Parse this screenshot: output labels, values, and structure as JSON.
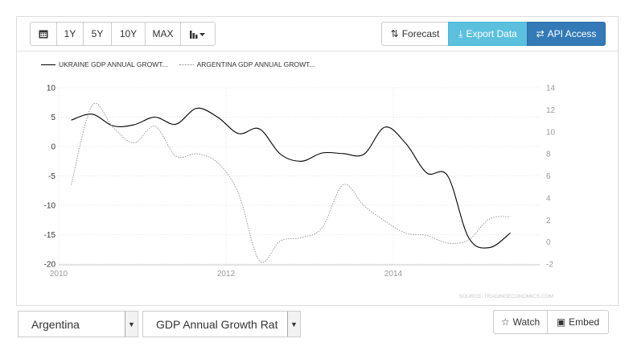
{
  "toolbar": {
    "ranges": [
      {
        "label": "1Y"
      },
      {
        "label": "5Y"
      },
      {
        "label": "10Y"
      },
      {
        "label": "MAX"
      }
    ],
    "forecast_label": "Forecast",
    "export_label": "Export Data",
    "api_label": "API Access",
    "calendar_icon": "calendar-icon",
    "chart_type_icon": "bar-chart-icon"
  },
  "legend": {
    "series1": "UKRAINE GDP ANNUAL GROWT...",
    "series2": "ARGENTINA GDP ANNUAL GROWT..."
  },
  "source_text": "SOURCE: TRADINGECONOMICS.COM",
  "colors": {
    "series1": "#000000",
    "series2": "#999999",
    "info_button": "#5bc0de",
    "primary_button": "#337ab7"
  },
  "chart_data": {
    "type": "line",
    "x_ticks": [
      "2010",
      "2012",
      "2014"
    ],
    "y_left": {
      "ticks": [
        "10",
        "5",
        "0",
        "-5",
        "-10",
        "-15",
        "-20"
      ],
      "range": [
        -20,
        10
      ]
    },
    "y_right": {
      "ticks": [
        "14",
        "12",
        "10",
        "8",
        "6",
        "4",
        "2",
        "0",
        "-2"
      ],
      "range": [
        -2,
        14
      ]
    },
    "grid": true,
    "legend_position": "top-left",
    "series": [
      {
        "name": "UKRAINE GDP ANNUAL GROWT...",
        "axis": "left",
        "style": "solid",
        "points": [
          [
            2010.15,
            4.5
          ],
          [
            2010.4,
            5.5
          ],
          [
            2010.65,
            3.5
          ],
          [
            2010.9,
            3.7
          ],
          [
            2011.15,
            5.0
          ],
          [
            2011.4,
            3.8
          ],
          [
            2011.65,
            6.5
          ],
          [
            2011.9,
            5.0
          ],
          [
            2012.15,
            2.2
          ],
          [
            2012.4,
            3.0
          ],
          [
            2012.65,
            -1.3
          ],
          [
            2012.9,
            -2.5
          ],
          [
            2013.15,
            -1.1
          ],
          [
            2013.4,
            -1.2
          ],
          [
            2013.65,
            -1.3
          ],
          [
            2013.9,
            3.3
          ],
          [
            2014.15,
            0.5
          ],
          [
            2014.4,
            -4.5
          ],
          [
            2014.65,
            -5.0
          ],
          [
            2014.9,
            -15.5
          ],
          [
            2015.15,
            -17.2
          ],
          [
            2015.4,
            -14.7
          ]
        ]
      },
      {
        "name": "ARGENTINA GDP ANNUAL GROWT...",
        "axis": "right",
        "style": "dotted",
        "points": [
          [
            2010.15,
            5.2
          ],
          [
            2010.4,
            12.4
          ],
          [
            2010.65,
            10.4
          ],
          [
            2010.9,
            9.0
          ],
          [
            2011.15,
            10.5
          ],
          [
            2011.4,
            7.8
          ],
          [
            2011.65,
            8.0
          ],
          [
            2011.9,
            7.2
          ],
          [
            2012.15,
            4.4
          ],
          [
            2012.4,
            -1.7
          ],
          [
            2012.65,
            0.1
          ],
          [
            2012.9,
            0.4
          ],
          [
            2013.15,
            1.3
          ],
          [
            2013.4,
            5.2
          ],
          [
            2013.65,
            3.3
          ],
          [
            2013.9,
            1.9
          ],
          [
            2014.15,
            0.8
          ],
          [
            2014.4,
            0.6
          ],
          [
            2014.65,
            -0.1
          ],
          [
            2014.9,
            0.2
          ],
          [
            2015.15,
            2.1
          ],
          [
            2015.4,
            2.3
          ]
        ]
      }
    ]
  },
  "bottom": {
    "country_value": "Argentina",
    "indicator_value": "GDP Annual Growth Rat",
    "watch_label": "Watch",
    "embed_label": "Embed"
  }
}
